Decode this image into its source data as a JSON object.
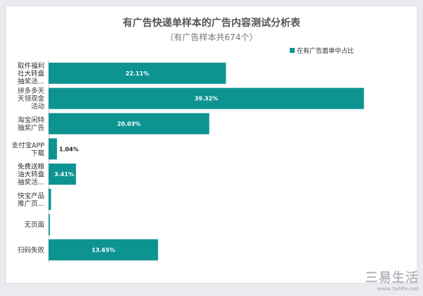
{
  "watermark": {
    "text": "三易生活",
    "url": "www.3elife.net"
  },
  "chart_data": {
    "type": "bar",
    "orientation": "horizontal",
    "title": "有广告快递单样本的广告内容测试分析表",
    "subtitle": "（有广告样本共674个）",
    "legend": {
      "label": "在有广告面单中占比",
      "position": "top-right"
    },
    "color": "#0e9393",
    "categories": [
      [
        "取件福利",
        "社大转盘",
        "抽奖活…"
      ],
      [
        "拼多多天",
        "天领现金",
        "活动"
      ],
      [
        "淘宝闲特",
        "抽奖广告"
      ],
      [
        "支付宝APP",
        "下载"
      ],
      [
        "免费送粮",
        "油大转盘",
        "抽奖活…"
      ],
      [
        "快宝产品",
        "推广页…"
      ],
      [
        "无页面"
      ],
      [
        "扫码失败"
      ]
    ],
    "values": [
      22.11,
      39.32,
      20.03,
      1.04,
      3.41,
      0.3,
      0.15,
      13.65
    ],
    "labels": [
      "22.11%",
      "39.32%",
      "20.03%",
      "1.04%",
      "3.41%",
      "",
      "",
      "13.65%"
    ],
    "xlim": [
      0,
      40
    ],
    "grid": false
  }
}
